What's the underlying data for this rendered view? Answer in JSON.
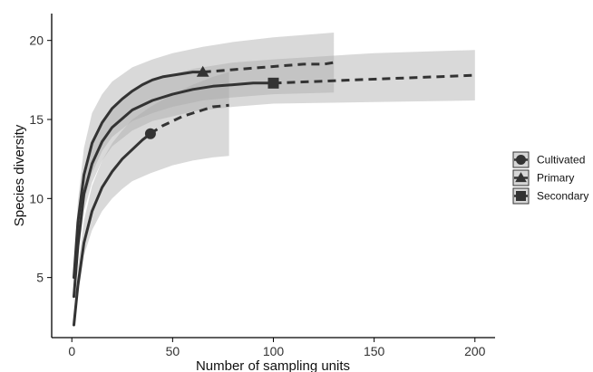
{
  "chart_data": {
    "type": "line",
    "title": "",
    "xlabel": "Number of sampling units",
    "ylabel": "Species diversity",
    "xlim": [
      -10,
      210
    ],
    "ylim": [
      1.2,
      21.7
    ],
    "x_ticks": [
      0,
      50,
      100,
      150,
      200
    ],
    "y_ticks": [
      5,
      10,
      15,
      20
    ],
    "grid": false,
    "legend_position": "right",
    "line_color": "#333333",
    "band_color": "#aaaaaa",
    "series": [
      {
        "name": "Cultivated",
        "marker": "circle",
        "observed_at": 39,
        "observed_value": 14.1,
        "interpolated": [
          [
            1,
            2.0
          ],
          [
            3,
            4.5
          ],
          [
            6,
            7.2
          ],
          [
            10,
            9.2
          ],
          [
            15,
            10.7
          ],
          [
            20,
            11.7
          ],
          [
            25,
            12.5
          ],
          [
            30,
            13.1
          ],
          [
            35,
            13.7
          ],
          [
            39,
            14.1
          ]
        ],
        "extrapolated": [
          [
            39,
            14.1
          ],
          [
            45,
            14.6
          ],
          [
            50,
            14.9
          ],
          [
            55,
            15.2
          ],
          [
            60,
            15.4
          ],
          [
            65,
            15.6
          ],
          [
            70,
            15.8
          ],
          [
            78,
            15.9
          ]
        ],
        "ci_lower": [
          [
            1,
            1.8
          ],
          [
            3,
            3.8
          ],
          [
            6,
            6.4
          ],
          [
            10,
            8.0
          ],
          [
            15,
            9.2
          ],
          [
            20,
            10.0
          ],
          [
            25,
            10.6
          ],
          [
            30,
            11.1
          ],
          [
            39,
            11.6
          ],
          [
            50,
            12.1
          ],
          [
            60,
            12.4
          ],
          [
            70,
            12.6
          ],
          [
            78,
            12.7
          ]
        ],
        "ci_upper": [
          [
            1,
            2.4
          ],
          [
            3,
            5.6
          ],
          [
            6,
            8.6
          ],
          [
            10,
            10.8
          ],
          [
            15,
            12.4
          ],
          [
            20,
            13.5
          ],
          [
            25,
            14.3
          ],
          [
            30,
            15.0
          ],
          [
            39,
            15.8
          ],
          [
            50,
            16.6
          ],
          [
            60,
            17.2
          ],
          [
            70,
            17.7
          ],
          [
            78,
            18.0
          ]
        ]
      },
      {
        "name": "Primary",
        "marker": "triangle",
        "observed_at": 65,
        "observed_value": 18.0,
        "interpolated": [
          [
            1,
            5.0
          ],
          [
            3,
            8.5
          ],
          [
            6,
            11.5
          ],
          [
            10,
            13.5
          ],
          [
            15,
            14.8
          ],
          [
            20,
            15.7
          ],
          [
            25,
            16.3
          ],
          [
            30,
            16.8
          ],
          [
            35,
            17.2
          ],
          [
            40,
            17.5
          ],
          [
            45,
            17.7
          ],
          [
            50,
            17.8
          ],
          [
            55,
            17.9
          ],
          [
            60,
            18.0
          ],
          [
            65,
            18.0
          ]
        ],
        "extrapolated": [
          [
            65,
            18.0
          ],
          [
            75,
            18.1
          ],
          [
            85,
            18.2
          ],
          [
            95,
            18.3
          ],
          [
            105,
            18.4
          ],
          [
            115,
            18.5
          ],
          [
            125,
            18.5
          ],
          [
            130,
            18.6
          ]
        ],
        "ci_lower": [
          [
            1,
            4.3
          ],
          [
            3,
            7.2
          ],
          [
            6,
            9.8
          ],
          [
            10,
            11.6
          ],
          [
            15,
            13.0
          ],
          [
            20,
            13.9
          ],
          [
            30,
            14.9
          ],
          [
            40,
            15.4
          ],
          [
            50,
            15.8
          ],
          [
            65,
            16.2
          ],
          [
            80,
            16.4
          ],
          [
            100,
            16.6
          ],
          [
            130,
            16.7
          ]
        ],
        "ci_upper": [
          [
            1,
            5.8
          ],
          [
            3,
            9.8
          ],
          [
            6,
            13.2
          ],
          [
            10,
            15.4
          ],
          [
            15,
            16.6
          ],
          [
            20,
            17.4
          ],
          [
            30,
            18.3
          ],
          [
            40,
            18.8
          ],
          [
            50,
            19.2
          ],
          [
            65,
            19.6
          ],
          [
            80,
            19.9
          ],
          [
            100,
            20.2
          ],
          [
            130,
            20.5
          ]
        ]
      },
      {
        "name": "Secondary",
        "marker": "square",
        "observed_at": 100,
        "observed_value": 17.3,
        "interpolated": [
          [
            1,
            3.8
          ],
          [
            3,
            7.0
          ],
          [
            6,
            10.3
          ],
          [
            10,
            12.2
          ],
          [
            15,
            13.6
          ],
          [
            20,
            14.5
          ],
          [
            30,
            15.6
          ],
          [
            40,
            16.2
          ],
          [
            50,
            16.6
          ],
          [
            60,
            16.9
          ],
          [
            70,
            17.1
          ],
          [
            80,
            17.2
          ],
          [
            90,
            17.3
          ],
          [
            100,
            17.3
          ]
        ],
        "extrapolated": [
          [
            100,
            17.3
          ],
          [
            120,
            17.4
          ],
          [
            140,
            17.5
          ],
          [
            160,
            17.6
          ],
          [
            180,
            17.7
          ],
          [
            200,
            17.8
          ]
        ],
        "ci_lower": [
          [
            1,
            3.3
          ],
          [
            3,
            6.2
          ],
          [
            6,
            9.2
          ],
          [
            10,
            11.0
          ],
          [
            15,
            12.4
          ],
          [
            20,
            13.3
          ],
          [
            30,
            14.3
          ],
          [
            40,
            14.9
          ],
          [
            60,
            15.5
          ],
          [
            80,
            15.8
          ],
          [
            100,
            16.0
          ],
          [
            150,
            16.1
          ],
          [
            200,
            16.2
          ]
        ],
        "ci_upper": [
          [
            1,
            4.4
          ],
          [
            3,
            7.9
          ],
          [
            6,
            11.4
          ],
          [
            10,
            13.4
          ],
          [
            15,
            14.8
          ],
          [
            20,
            15.7
          ],
          [
            30,
            16.9
          ],
          [
            40,
            17.5
          ],
          [
            60,
            18.2
          ],
          [
            80,
            18.6
          ],
          [
            100,
            18.8
          ],
          [
            150,
            19.2
          ],
          [
            200,
            19.4
          ]
        ]
      }
    ]
  }
}
